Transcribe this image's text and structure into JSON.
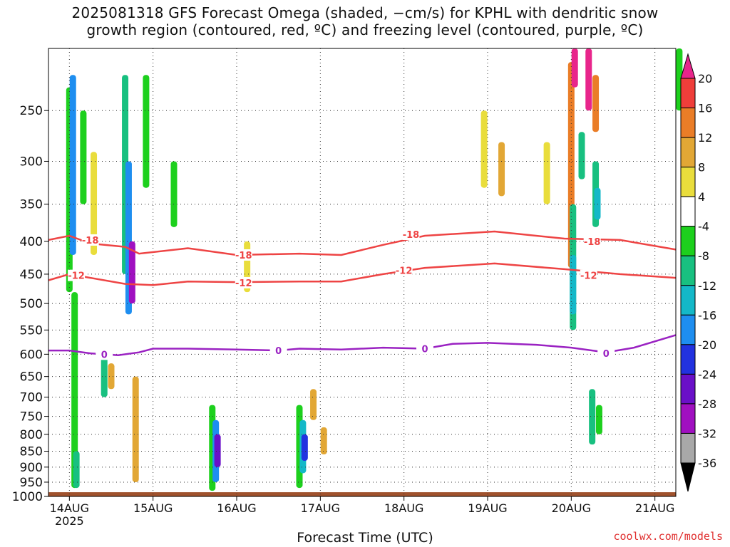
{
  "title": {
    "line1": "2025081318 GFS Forecast Omega (shaded, −cm/s) for KPHL with dendritic snow",
    "line2": "growth region (contoured, red, ºC) and freezing level (contoured, purple, ºC)"
  },
  "xaxis_title": "Forecast Time (UTC)",
  "watermark": "coolwx.com/models",
  "chart_data": {
    "type": "heatmap",
    "xlabel": "Forecast Time (UTC)",
    "ylabel": "",
    "x_ticks": [
      {
        "label": "14AUG",
        "sub": "2025",
        "hour": 6
      },
      {
        "label": "15AUG",
        "hour": 30
      },
      {
        "label": "16AUG",
        "hour": 54
      },
      {
        "label": "17AUG",
        "hour": 78
      },
      {
        "label": "18AUG",
        "hour": 102
      },
      {
        "label": "19AUG",
        "hour": 126
      },
      {
        "label": "20AUG",
        "hour": 150
      },
      {
        "label": "21AUG",
        "hour": 174
      }
    ],
    "xlim_hours": [
      0,
      180
    ],
    "y_ticks": [
      250,
      300,
      350,
      400,
      450,
      500,
      550,
      600,
      650,
      700,
      750,
      800,
      850,
      900,
      950,
      1000
    ],
    "ylim_hPa": [
      200,
      1000
    ],
    "y_scale": "log-pressure",
    "grid": true,
    "colorbar": {
      "labels": [
        "20",
        "16",
        "12",
        "8",
        "4",
        "-4",
        "-8",
        "-12",
        "-16",
        "-20",
        "-24",
        "-28",
        "-32",
        "-36"
      ],
      "bins": [
        {
          "min": 20,
          "max": 24,
          "color": "#e8258b"
        },
        {
          "min": 16,
          "max": 20,
          "color": "#ef3e3a"
        },
        {
          "min": 12,
          "max": 16,
          "color": "#ea7d27"
        },
        {
          "min": 8,
          "max": 12,
          "color": "#e2a735"
        },
        {
          "min": 4,
          "max": 8,
          "color": "#e9dd3c"
        },
        {
          "min": -4,
          "max": 4,
          "color": "#ffffff"
        },
        {
          "min": -8,
          "max": -4,
          "color": "#1dd01d"
        },
        {
          "min": -12,
          "max": -8,
          "color": "#18c080"
        },
        {
          "min": -16,
          "max": -12,
          "color": "#14b8c8"
        },
        {
          "min": -20,
          "max": -16,
          "color": "#1e8ef0"
        },
        {
          "min": -24,
          "max": -20,
          "color": "#2232e0"
        },
        {
          "min": -28,
          "max": -24,
          "color": "#6a10c8"
        },
        {
          "min": -32,
          "max": -28,
          "color": "#a010c0"
        },
        {
          "min": -36,
          "max": -32,
          "color": "#a8a8a8"
        },
        {
          "min": -40,
          "max": -36,
          "color": "#000000"
        }
      ]
    },
    "omega_cells": [
      {
        "h": 6,
        "p": [
          230,
          480
        ],
        "v": -6
      },
      {
        "h": 7,
        "p": [
          220,
          420
        ],
        "v": -18
      },
      {
        "h": 7.5,
        "p": [
          480,
          970
        ],
        "v": -8
      },
      {
        "h": 8,
        "p": [
          850,
          970
        ],
        "v": -12
      },
      {
        "h": 10,
        "p": [
          250,
          350
        ],
        "v": -6
      },
      {
        "h": 13,
        "p": [
          290,
          420
        ],
        "v": 5
      },
      {
        "h": 16,
        "p": [
          600,
          700
        ],
        "v": -10
      },
      {
        "h": 18,
        "p": [
          620,
          680
        ],
        "v": 9
      },
      {
        "h": 22,
        "p": [
          220,
          450
        ],
        "v": -10
      },
      {
        "h": 23,
        "p": [
          300,
          520
        ],
        "v": -20
      },
      {
        "h": 24,
        "p": [
          400,
          500
        ],
        "v": -30
      },
      {
        "h": 25,
        "p": [
          650,
          950
        ],
        "v": 8
      },
      {
        "h": 28,
        "p": [
          220,
          330
        ],
        "v": -6
      },
      {
        "h": 36,
        "p": [
          300,
          380
        ],
        "v": -6
      },
      {
        "h": 47,
        "p": [
          720,
          980
        ],
        "v": -8
      },
      {
        "h": 48,
        "p": [
          760,
          950
        ],
        "v": -20
      },
      {
        "h": 48.5,
        "p": [
          800,
          900
        ],
        "v": -28
      },
      {
        "h": 57,
        "p": [
          400,
          480
        ],
        "v": 5
      },
      {
        "h": 72,
        "p": [
          720,
          970
        ],
        "v": -8
      },
      {
        "h": 73,
        "p": [
          760,
          920
        ],
        "v": -16
      },
      {
        "h": 73.5,
        "p": [
          800,
          880
        ],
        "v": -24
      },
      {
        "h": 76,
        "p": [
          680,
          760
        ],
        "v": 9
      },
      {
        "h": 79,
        "p": [
          780,
          860
        ],
        "v": 9
      },
      {
        "h": 125,
        "p": [
          250,
          330
        ],
        "v": 5
      },
      {
        "h": 130,
        "p": [
          280,
          340
        ],
        "v": 9
      },
      {
        "h": 143,
        "p": [
          280,
          350
        ],
        "v": 5
      },
      {
        "h": 150,
        "p": [
          210,
          440
        ],
        "v": 13
      },
      {
        "h": 151,
        "p": [
          200,
          230
        ],
        "v": 22
      },
      {
        "h": 150.5,
        "p": [
          350,
          550
        ],
        "v": -12
      },
      {
        "h": 150.5,
        "p": [
          420,
          520
        ],
        "v": -16
      },
      {
        "h": 153,
        "p": [
          270,
          320
        ],
        "v": -12
      },
      {
        "h": 155,
        "p": [
          200,
          250
        ],
        "v": 22
      },
      {
        "h": 157,
        "p": [
          220,
          270
        ],
        "v": 13
      },
      {
        "h": 157,
        "p": [
          300,
          380
        ],
        "v": -12
      },
      {
        "h": 157.5,
        "p": [
          330,
          370
        ],
        "v": -16
      },
      {
        "h": 156,
        "p": [
          680,
          830
        ],
        "v": -10
      },
      {
        "h": 158,
        "p": [
          720,
          800
        ],
        "v": -6
      },
      {
        "h": 181,
        "p": [
          200,
          250
        ],
        "v": -6
      }
    ],
    "dgz_contours": [
      {
        "label": "-18",
        "color": "#ee4444",
        "points": [
          [
            0,
            398
          ],
          [
            6,
            392
          ],
          [
            12,
            403
          ],
          [
            22,
            408
          ],
          [
            26,
            418
          ],
          [
            40,
            410
          ],
          [
            54,
            420
          ],
          [
            72,
            418
          ],
          [
            84,
            420
          ],
          [
            96,
            405
          ],
          [
            108,
            392
          ],
          [
            128,
            386
          ],
          [
            148,
            396
          ],
          [
            164,
            398
          ],
          [
            180,
            412
          ]
        ],
        "label_at": [
          [
            12,
            398
          ],
          [
            56,
            420
          ],
          [
            104,
            390
          ],
          [
            156,
            400
          ]
        ]
      },
      {
        "label": "-12",
        "color": "#ee4444",
        "points": [
          [
            0,
            460
          ],
          [
            6,
            450
          ],
          [
            12,
            456
          ],
          [
            22,
            466
          ],
          [
            30,
            468
          ],
          [
            40,
            462
          ],
          [
            54,
            463
          ],
          [
            72,
            462
          ],
          [
            84,
            462
          ],
          [
            96,
            450
          ],
          [
            108,
            440
          ],
          [
            128,
            433
          ],
          [
            148,
            442
          ],
          [
            164,
            450
          ],
          [
            180,
            456
          ]
        ],
        "label_at": [
          [
            8,
            452
          ],
          [
            56,
            464
          ],
          [
            102,
            444
          ],
          [
            155,
            452
          ]
        ]
      }
    ],
    "freezing_level": {
      "label": "0",
      "color": "#9a22c2",
      "points": [
        [
          0,
          592
        ],
        [
          6,
          592
        ],
        [
          12,
          598
        ],
        [
          20,
          602
        ],
        [
          26,
          596
        ],
        [
          30,
          588
        ],
        [
          40,
          588
        ],
        [
          54,
          590
        ],
        [
          66,
          592
        ],
        [
          72,
          588
        ],
        [
          84,
          590
        ],
        [
          96,
          586
        ],
        [
          108,
          588
        ],
        [
          116,
          578
        ],
        [
          126,
          576
        ],
        [
          140,
          580
        ],
        [
          150,
          586
        ],
        [
          160,
          596
        ],
        [
          168,
          586
        ],
        [
          180,
          560
        ]
      ],
      "label_at": [
        [
          16,
          600
        ],
        [
          66,
          592
        ],
        [
          108,
          588
        ],
        [
          160,
          598
        ]
      ]
    }
  }
}
